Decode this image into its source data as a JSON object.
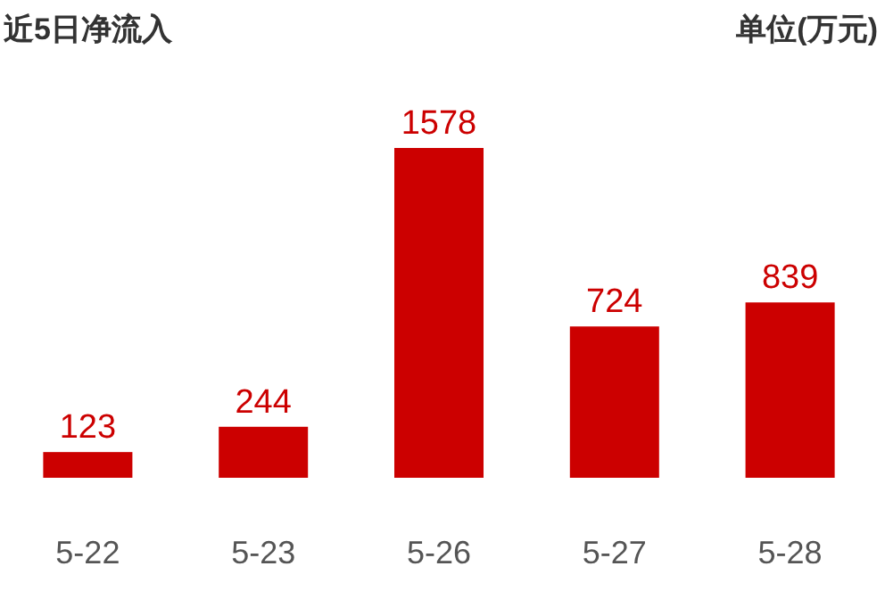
{
  "chart_data": {
    "type": "bar",
    "title": "近5日净流入",
    "subtitle": "单位(万元)",
    "categories": [
      "5-22",
      "5-23",
      "5-26",
      "5-27",
      "5-28"
    ],
    "values": [
      123,
      244,
      1578,
      724,
      839
    ],
    "color": "#cc0000",
    "data_labels": true
  }
}
